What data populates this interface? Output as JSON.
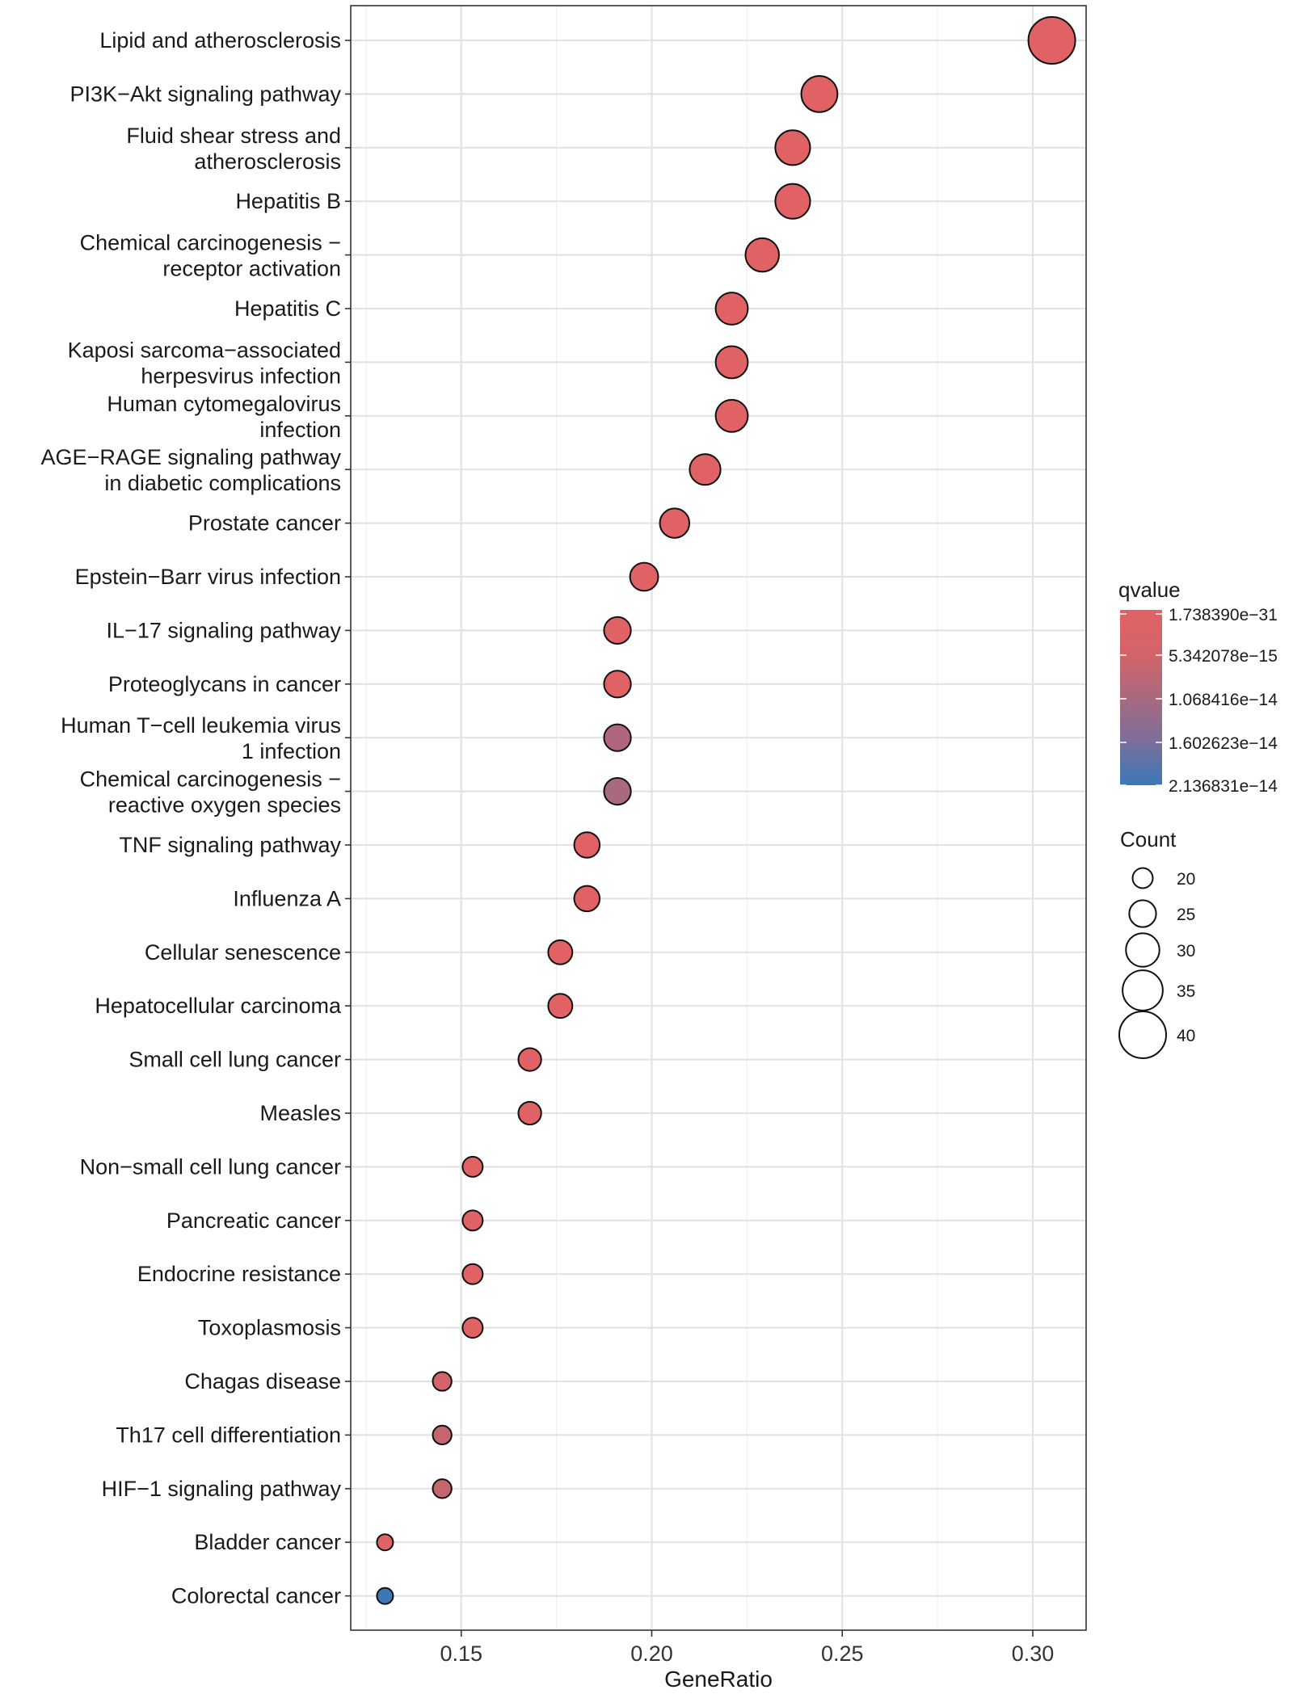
{
  "chart_data": {
    "type": "scatter",
    "title": "",
    "xlabel": "GeneRatio",
    "ylabel": "",
    "xlim": [
      0.121,
      0.314
    ],
    "xticks": [
      0.15,
      0.2,
      0.25,
      0.3
    ],
    "xtick_labels": [
      "0.15",
      "0.20",
      "0.25",
      "0.30"
    ],
    "grid": true,
    "points": [
      {
        "label": "Lipid and atherosclerosis",
        "label_lines": [
          "Lipid and atherosclerosis"
        ],
        "x": 0.305,
        "count": 40,
        "color": "#E06264"
      },
      {
        "label": "PI3K−Akt signaling pathway",
        "label_lines": [
          "PI3K−Akt signaling pathway"
        ],
        "x": 0.244,
        "count": 32,
        "color": "#E06264"
      },
      {
        "label": "Fluid shear stress and atherosclerosis",
        "label_lines": [
          "Fluid shear stress and",
          "atherosclerosis"
        ],
        "x": 0.237,
        "count": 31,
        "color": "#E06264"
      },
      {
        "label": "Hepatitis B",
        "label_lines": [
          "Hepatitis B"
        ],
        "x": 0.237,
        "count": 31,
        "color": "#E06264"
      },
      {
        "label": "Chemical carcinogenesis − receptor activation",
        "label_lines": [
          "Chemical carcinogenesis −",
          "receptor activation"
        ],
        "x": 0.229,
        "count": 30,
        "color": "#E06264"
      },
      {
        "label": "Hepatitis C",
        "label_lines": [
          "Hepatitis C"
        ],
        "x": 0.221,
        "count": 29,
        "color": "#E06264"
      },
      {
        "label": "Kaposi sarcoma−associated herpesvirus infection",
        "label_lines": [
          "Kaposi sarcoma−associated",
          "herpesvirus infection"
        ],
        "x": 0.221,
        "count": 29,
        "color": "#E06264"
      },
      {
        "label": "Human cytomegalovirus infection",
        "label_lines": [
          "Human cytomegalovirus",
          "infection"
        ],
        "x": 0.221,
        "count": 29,
        "color": "#E06264"
      },
      {
        "label": "AGE−RAGE signaling pathway in diabetic complications",
        "label_lines": [
          "AGE−RAGE signaling pathway",
          "in diabetic complications"
        ],
        "x": 0.214,
        "count": 28,
        "color": "#E06264"
      },
      {
        "label": "Prostate cancer",
        "label_lines": [
          "Prostate cancer"
        ],
        "x": 0.206,
        "count": 27,
        "color": "#E06264"
      },
      {
        "label": "Epstein−Barr virus infection",
        "label_lines": [
          "Epstein−Barr virus infection"
        ],
        "x": 0.198,
        "count": 26,
        "color": "#E06264"
      },
      {
        "label": "IL−17 signaling pathway",
        "label_lines": [
          "IL−17 signaling pathway"
        ],
        "x": 0.191,
        "count": 25,
        "color": "#E06264"
      },
      {
        "label": "Proteoglycans in cancer",
        "label_lines": [
          "Proteoglycans in cancer"
        ],
        "x": 0.191,
        "count": 25,
        "color": "#E06264"
      },
      {
        "label": "Human T−cell leukemia virus 1 infection",
        "label_lines": [
          "Human T−cell leukemia virus",
          "1 infection"
        ],
        "x": 0.191,
        "count": 25,
        "color": "#B0677E"
      },
      {
        "label": "Chemical carcinogenesis − reactive oxygen species",
        "label_lines": [
          "Chemical carcinogenesis −",
          "reactive oxygen species"
        ],
        "x": 0.191,
        "count": 25,
        "color": "#A9697F"
      },
      {
        "label": "TNF signaling pathway",
        "label_lines": [
          "TNF signaling pathway"
        ],
        "x": 0.183,
        "count": 24,
        "color": "#E06264"
      },
      {
        "label": "Influenza A",
        "label_lines": [
          "Influenza A"
        ],
        "x": 0.183,
        "count": 24,
        "color": "#E06264"
      },
      {
        "label": "Cellular senescence",
        "label_lines": [
          "Cellular senescence"
        ],
        "x": 0.176,
        "count": 23,
        "color": "#E06264"
      },
      {
        "label": "Hepatocellular carcinoma",
        "label_lines": [
          "Hepatocellular carcinoma"
        ],
        "x": 0.176,
        "count": 23,
        "color": "#E06264"
      },
      {
        "label": "Small cell lung cancer",
        "label_lines": [
          "Small cell lung cancer"
        ],
        "x": 0.168,
        "count": 22,
        "color": "#E06264"
      },
      {
        "label": "Measles",
        "label_lines": [
          "Measles"
        ],
        "x": 0.168,
        "count": 22,
        "color": "#E06264"
      },
      {
        "label": "Non−small cell lung cancer",
        "label_lines": [
          "Non−small cell lung cancer"
        ],
        "x": 0.153,
        "count": 20,
        "color": "#E06264"
      },
      {
        "label": "Pancreatic cancer",
        "label_lines": [
          "Pancreatic cancer"
        ],
        "x": 0.153,
        "count": 20,
        "color": "#E06264"
      },
      {
        "label": "Endocrine resistance",
        "label_lines": [
          "Endocrine resistance"
        ],
        "x": 0.153,
        "count": 20,
        "color": "#E06264"
      },
      {
        "label": "Toxoplasmosis",
        "label_lines": [
          "Toxoplasmosis"
        ],
        "x": 0.153,
        "count": 20,
        "color": "#E06264"
      },
      {
        "label": "Chagas disease",
        "label_lines": [
          "Chagas disease"
        ],
        "x": 0.145,
        "count": 19,
        "color": "#D46468"
      },
      {
        "label": "Th17 cell differentiation",
        "label_lines": [
          "Th17 cell differentiation"
        ],
        "x": 0.145,
        "count": 19,
        "color": "#C5666F"
      },
      {
        "label": "HIF−1 signaling pathway",
        "label_lines": [
          "HIF−1 signaling pathway"
        ],
        "x": 0.145,
        "count": 19,
        "color": "#C5666F"
      },
      {
        "label": "Bladder cancer",
        "label_lines": [
          "Bladder cancer"
        ],
        "x": 0.13,
        "count": 17,
        "color": "#E06264"
      },
      {
        "label": "Colorectal cancer",
        "label_lines": [
          "Colorectal cancer"
        ],
        "x": 0.13,
        "count": 17,
        "color": "#3A78B7"
      }
    ],
    "legend_color": {
      "title": "qvalue",
      "labels": [
        "1.738390e−31",
        "5.342078e−15",
        "1.068416e−14",
        "1.602623e−14",
        "2.136831e−14"
      ],
      "color_high": "#E06264",
      "color_low": "#3A78B7",
      "placement": "right"
    },
    "legend_size": {
      "title": "Count",
      "values": [
        20,
        25,
        30,
        35,
        40
      ],
      "labels": [
        "20",
        "25",
        "30",
        "35",
        "40"
      ],
      "placement": "right"
    }
  }
}
